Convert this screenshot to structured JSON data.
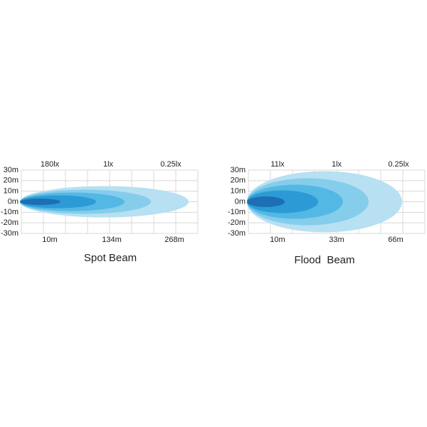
{
  "panels": [
    {
      "title": "Spot Beam",
      "y_labels": [
        "30m",
        "20m",
        "10m",
        "0m",
        "-10m",
        "-20m",
        "-30m"
      ],
      "lux_labels": [
        "180lx",
        "1lx",
        "0.25lx"
      ],
      "distance_labels": [
        "10m",
        "134m",
        "268m"
      ]
    },
    {
      "title": "Flood  Beam",
      "y_labels": [
        "30m",
        "20m",
        "10m",
        "0m",
        "-10m",
        "-20m",
        "-30m"
      ],
      "lux_labels": [
        "11lx",
        "1lx",
        "0.25lx"
      ],
      "distance_labels": [
        "10m",
        "33m",
        "66m"
      ]
    }
  ]
}
